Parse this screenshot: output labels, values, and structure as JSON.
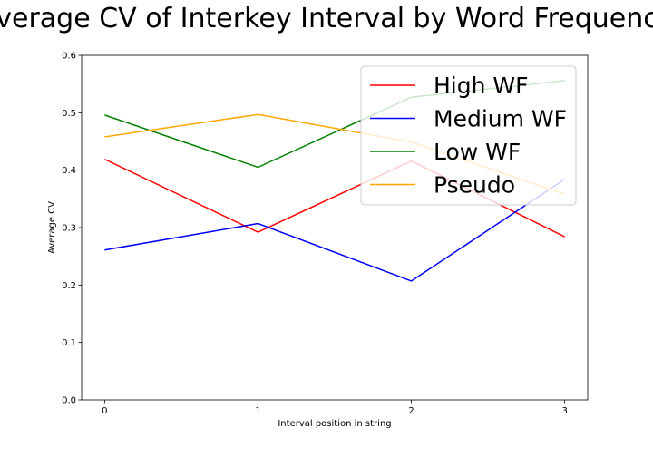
{
  "chart_data": {
    "type": "line",
    "title": "Average CV of Interkey Interval by Word Frequency",
    "xlabel": "Interval position in string",
    "ylabel": "Average CV",
    "x": [
      0,
      1,
      2,
      3
    ],
    "xticks": [
      "0",
      "1",
      "2",
      "3"
    ],
    "yticks": [
      "0.0",
      "0.1",
      "0.2",
      "0.3",
      "0.4",
      "0.5",
      "0.6"
    ],
    "xlim": [
      -0.15,
      3.15
    ],
    "ylim": [
      0,
      0.6
    ],
    "grid": false,
    "legend_position": "top-right",
    "series": [
      {
        "name": "High WF",
        "color": "#ff0000",
        "values": [
          0.419,
          0.292,
          0.416,
          0.284
        ]
      },
      {
        "name": "Medium WF",
        "color": "#0000ff",
        "values": [
          0.261,
          0.307,
          0.207,
          0.384
        ]
      },
      {
        "name": "Low WF",
        "color": "#008000",
        "values": [
          0.496,
          0.405,
          0.527,
          0.556
        ]
      },
      {
        "name": "Pseudo",
        "color": "#ffa500",
        "values": [
          0.458,
          0.497,
          0.449,
          0.358
        ]
      }
    ]
  }
}
